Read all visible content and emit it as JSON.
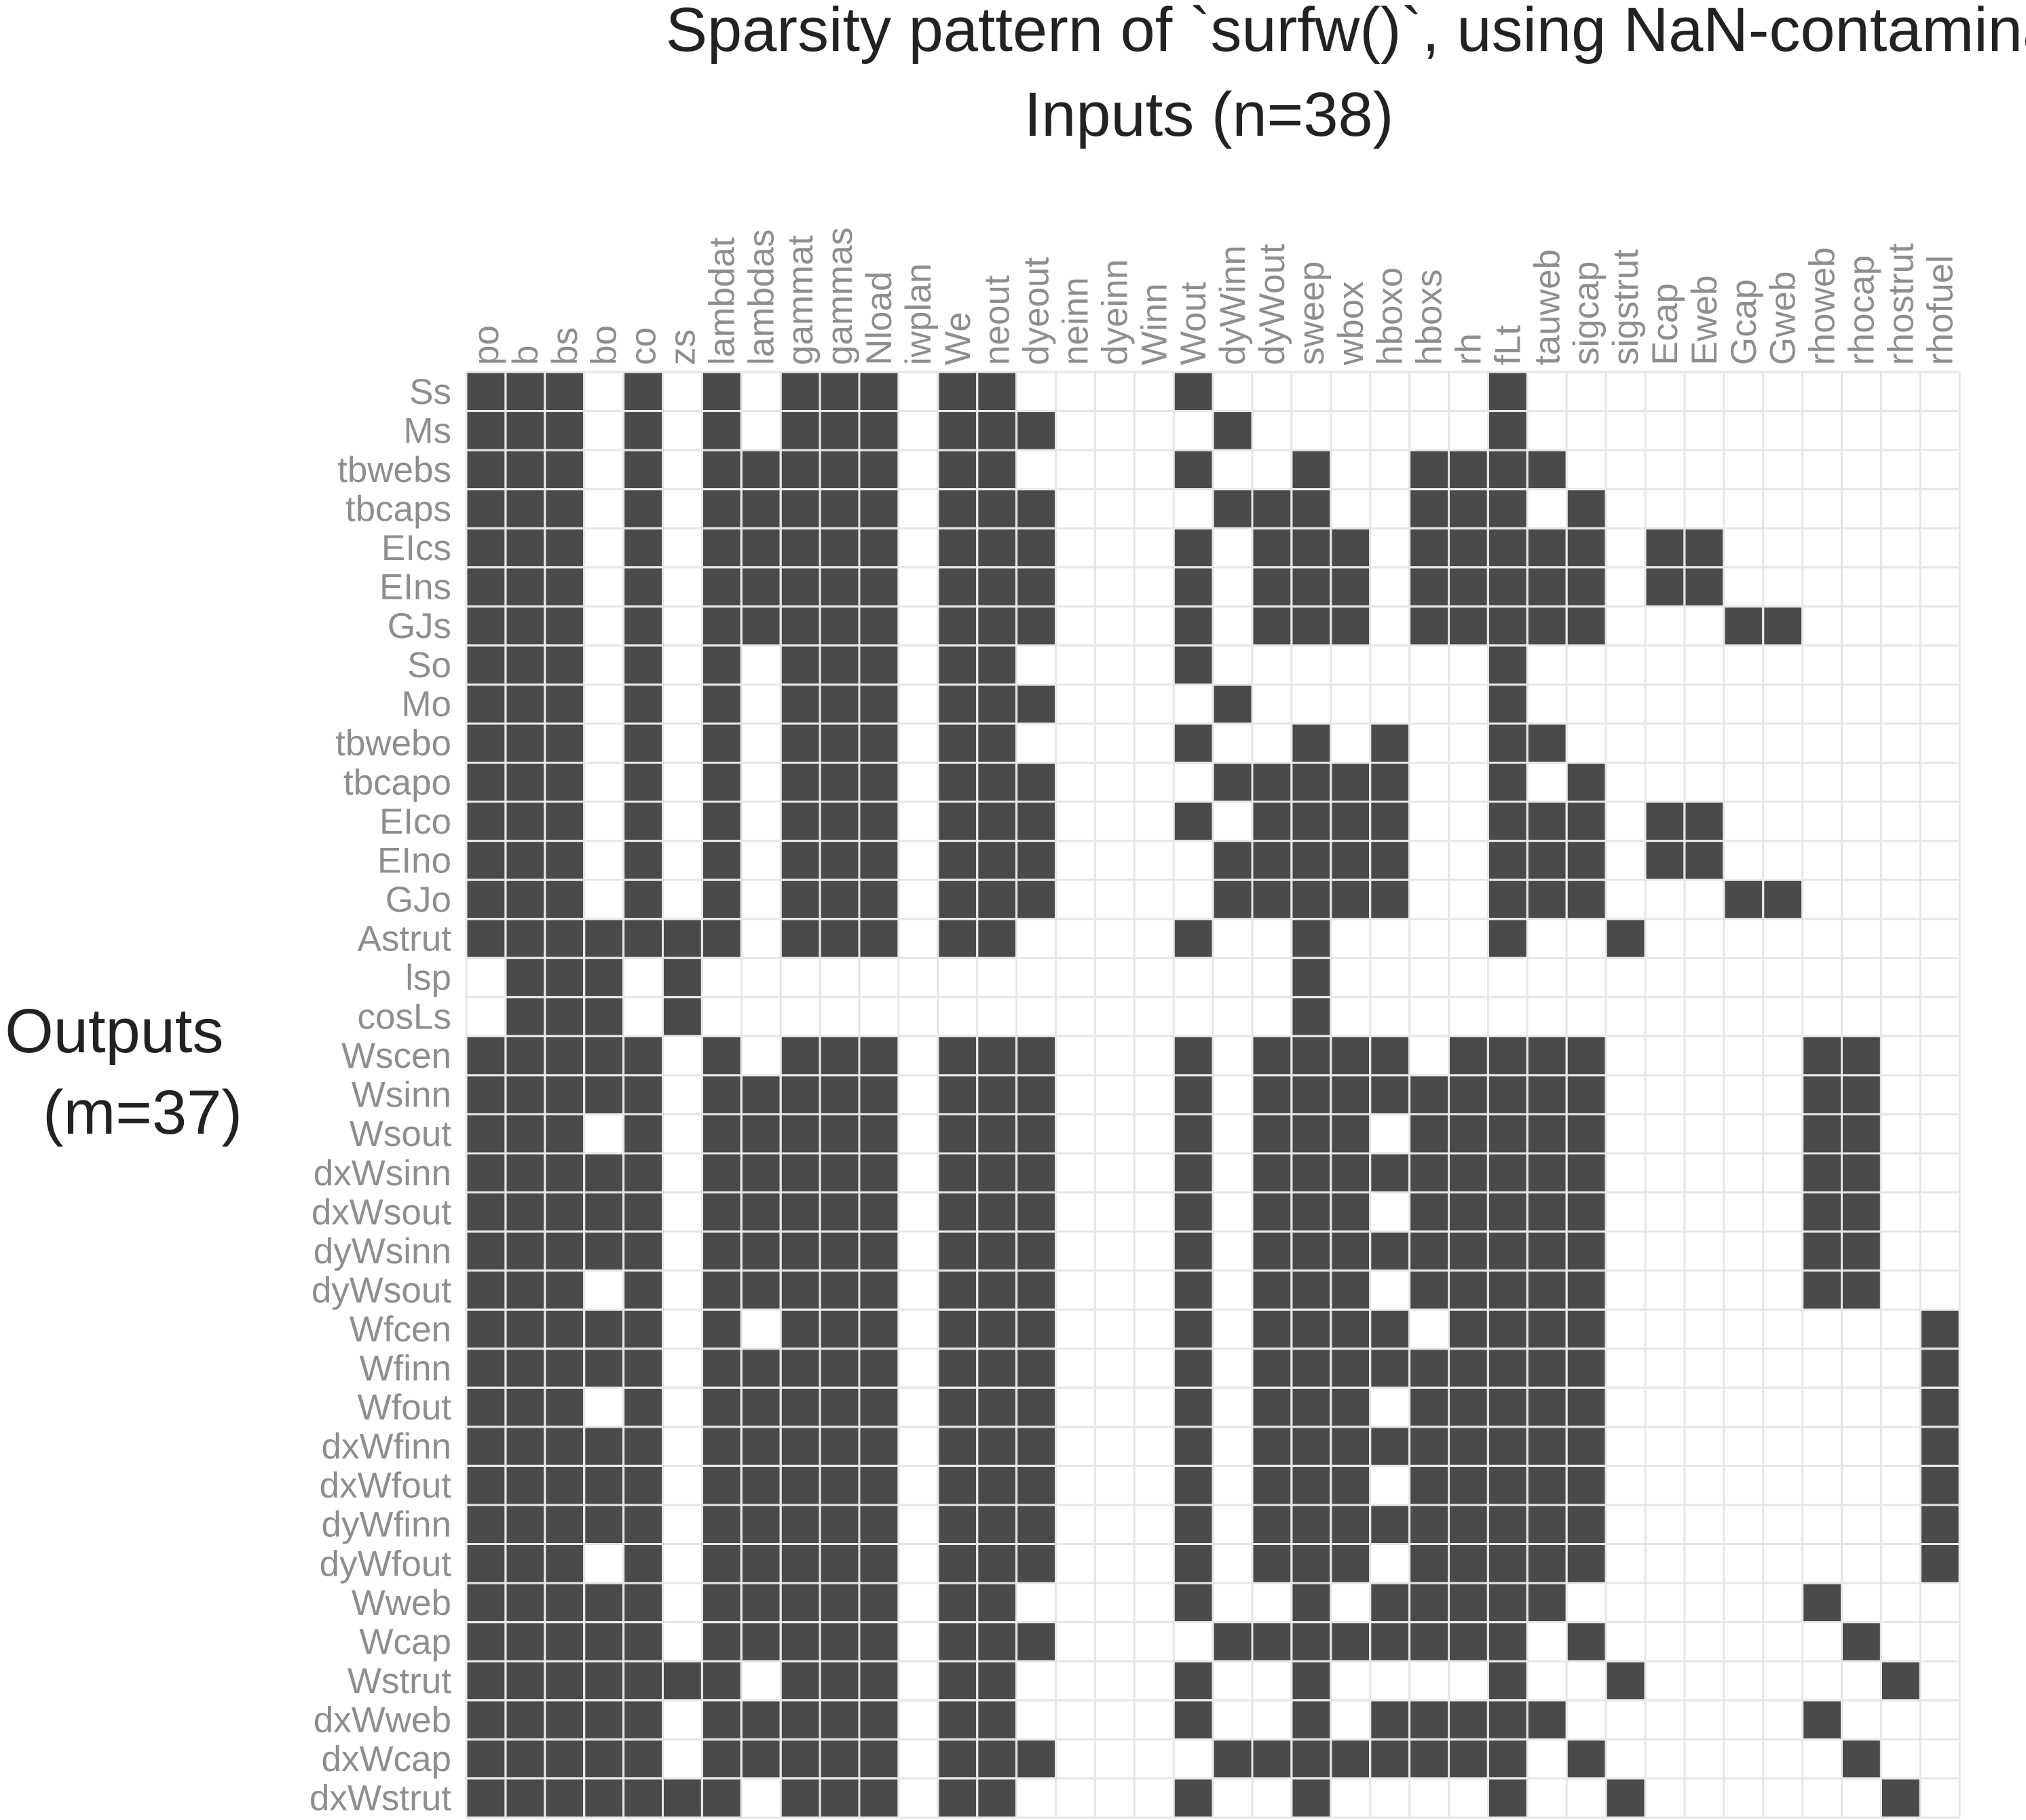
{
  "chart_data": {
    "type": "heatmap",
    "title": "Sparsity pattern of `surfw()`, using NaN-contamination",
    "xlabel": "Inputs (n=38)",
    "ylabel_lines": [
      "Outputs",
      "(m=37)"
    ],
    "grid": true,
    "colors": {
      "filled": "#4a4a4a",
      "empty": "#ffffff",
      "grid": "#e6e6e6"
    },
    "x": [
      "po",
      "b",
      "bs",
      "bo",
      "co",
      "zs",
      "lambdat",
      "lambdas",
      "gammat",
      "gammas",
      "Nload",
      "iwplan",
      "We",
      "neout",
      "dyeout",
      "neinn",
      "dyeinn",
      "Winn",
      "Wout",
      "dyWinn",
      "dyWout",
      "sweep",
      "wbox",
      "hboxo",
      "hboxs",
      "rh",
      "fLt",
      "tauweb",
      "sigcap",
      "sigstrut",
      "Ecap",
      "Eweb",
      "Gcap",
      "Gweb",
      "rhoweb",
      "rhocap",
      "rhostrut",
      "rhofuel"
    ],
    "y": [
      "Ss",
      "Ms",
      "tbwebs",
      "tbcaps",
      "EIcs",
      "EIns",
      "GJs",
      "So",
      "Mo",
      "tbwebo",
      "tbcapo",
      "EIco",
      "EIno",
      "GJo",
      "Astrut",
      "lsp",
      "cosLs",
      "Wscen",
      "Wsinn",
      "Wsout",
      "dxWsinn",
      "dxWsout",
      "dyWsinn",
      "dyWsout",
      "Wfcen",
      "Wfinn",
      "Wfout",
      "dxWfinn",
      "dxWfout",
      "dyWfinn",
      "dyWfout",
      "Wweb",
      "Wcap",
      "Wstrut",
      "dxWweb",
      "dxWcap",
      "dxWstrut"
    ],
    "matrix": [
      "11101010111011000010000000100000000000",
      "11101010111011100001000000100000000000",
      "11101011111011000010010011110000000000",
      "11101011111011100001110011101000000000",
      "11101011111011100010111011111011000000",
      "11101011111011100010111011111011000000",
      "11101011111011100010111011111000110000",
      "11101010111011000010000000100000000000",
      "11101010111011100001000000100000000000",
      "11101010111011000010010100110000000000",
      "11101010111011100001111100101000000000",
      "11101010111011100010111100111011000000",
      "11101010111011100001111100111011000000",
      "11101010111011100001111100111000110000",
      "11111110111011000010010000100100000000",
      "01110100000000000000010000000000000000",
      "01110100000000000000010000000000000000",
      "11111010111011100010111101111000001100",
      "11111011111011100010111111111000001100",
      "11101011111011100010111011111000001100",
      "11111011111011100010111111111000001100",
      "11111011111011100010111011111000001100",
      "11111011111011100010111111111000001100",
      "11101011111011100010111011111000001100",
      "11111010111011100010111101111000000001",
      "11111011111011100010111111111000000001",
      "11101011111011100010111011111000000001",
      "11111011111011100010111111111000000001",
      "11111011111011100010111011111000000001",
      "11111011111011100010111111111000000001",
      "11101011111011100010111011111000000001",
      "11111011111011000010010111110000001000",
      "11111011111011100001111111101000000100",
      "11111110111011000010010000100100000010",
      "11111011111011000010010111110000001000",
      "11111011111011100001111111101000000100",
      "11111110111011000010010000100100000010"
    ]
  }
}
